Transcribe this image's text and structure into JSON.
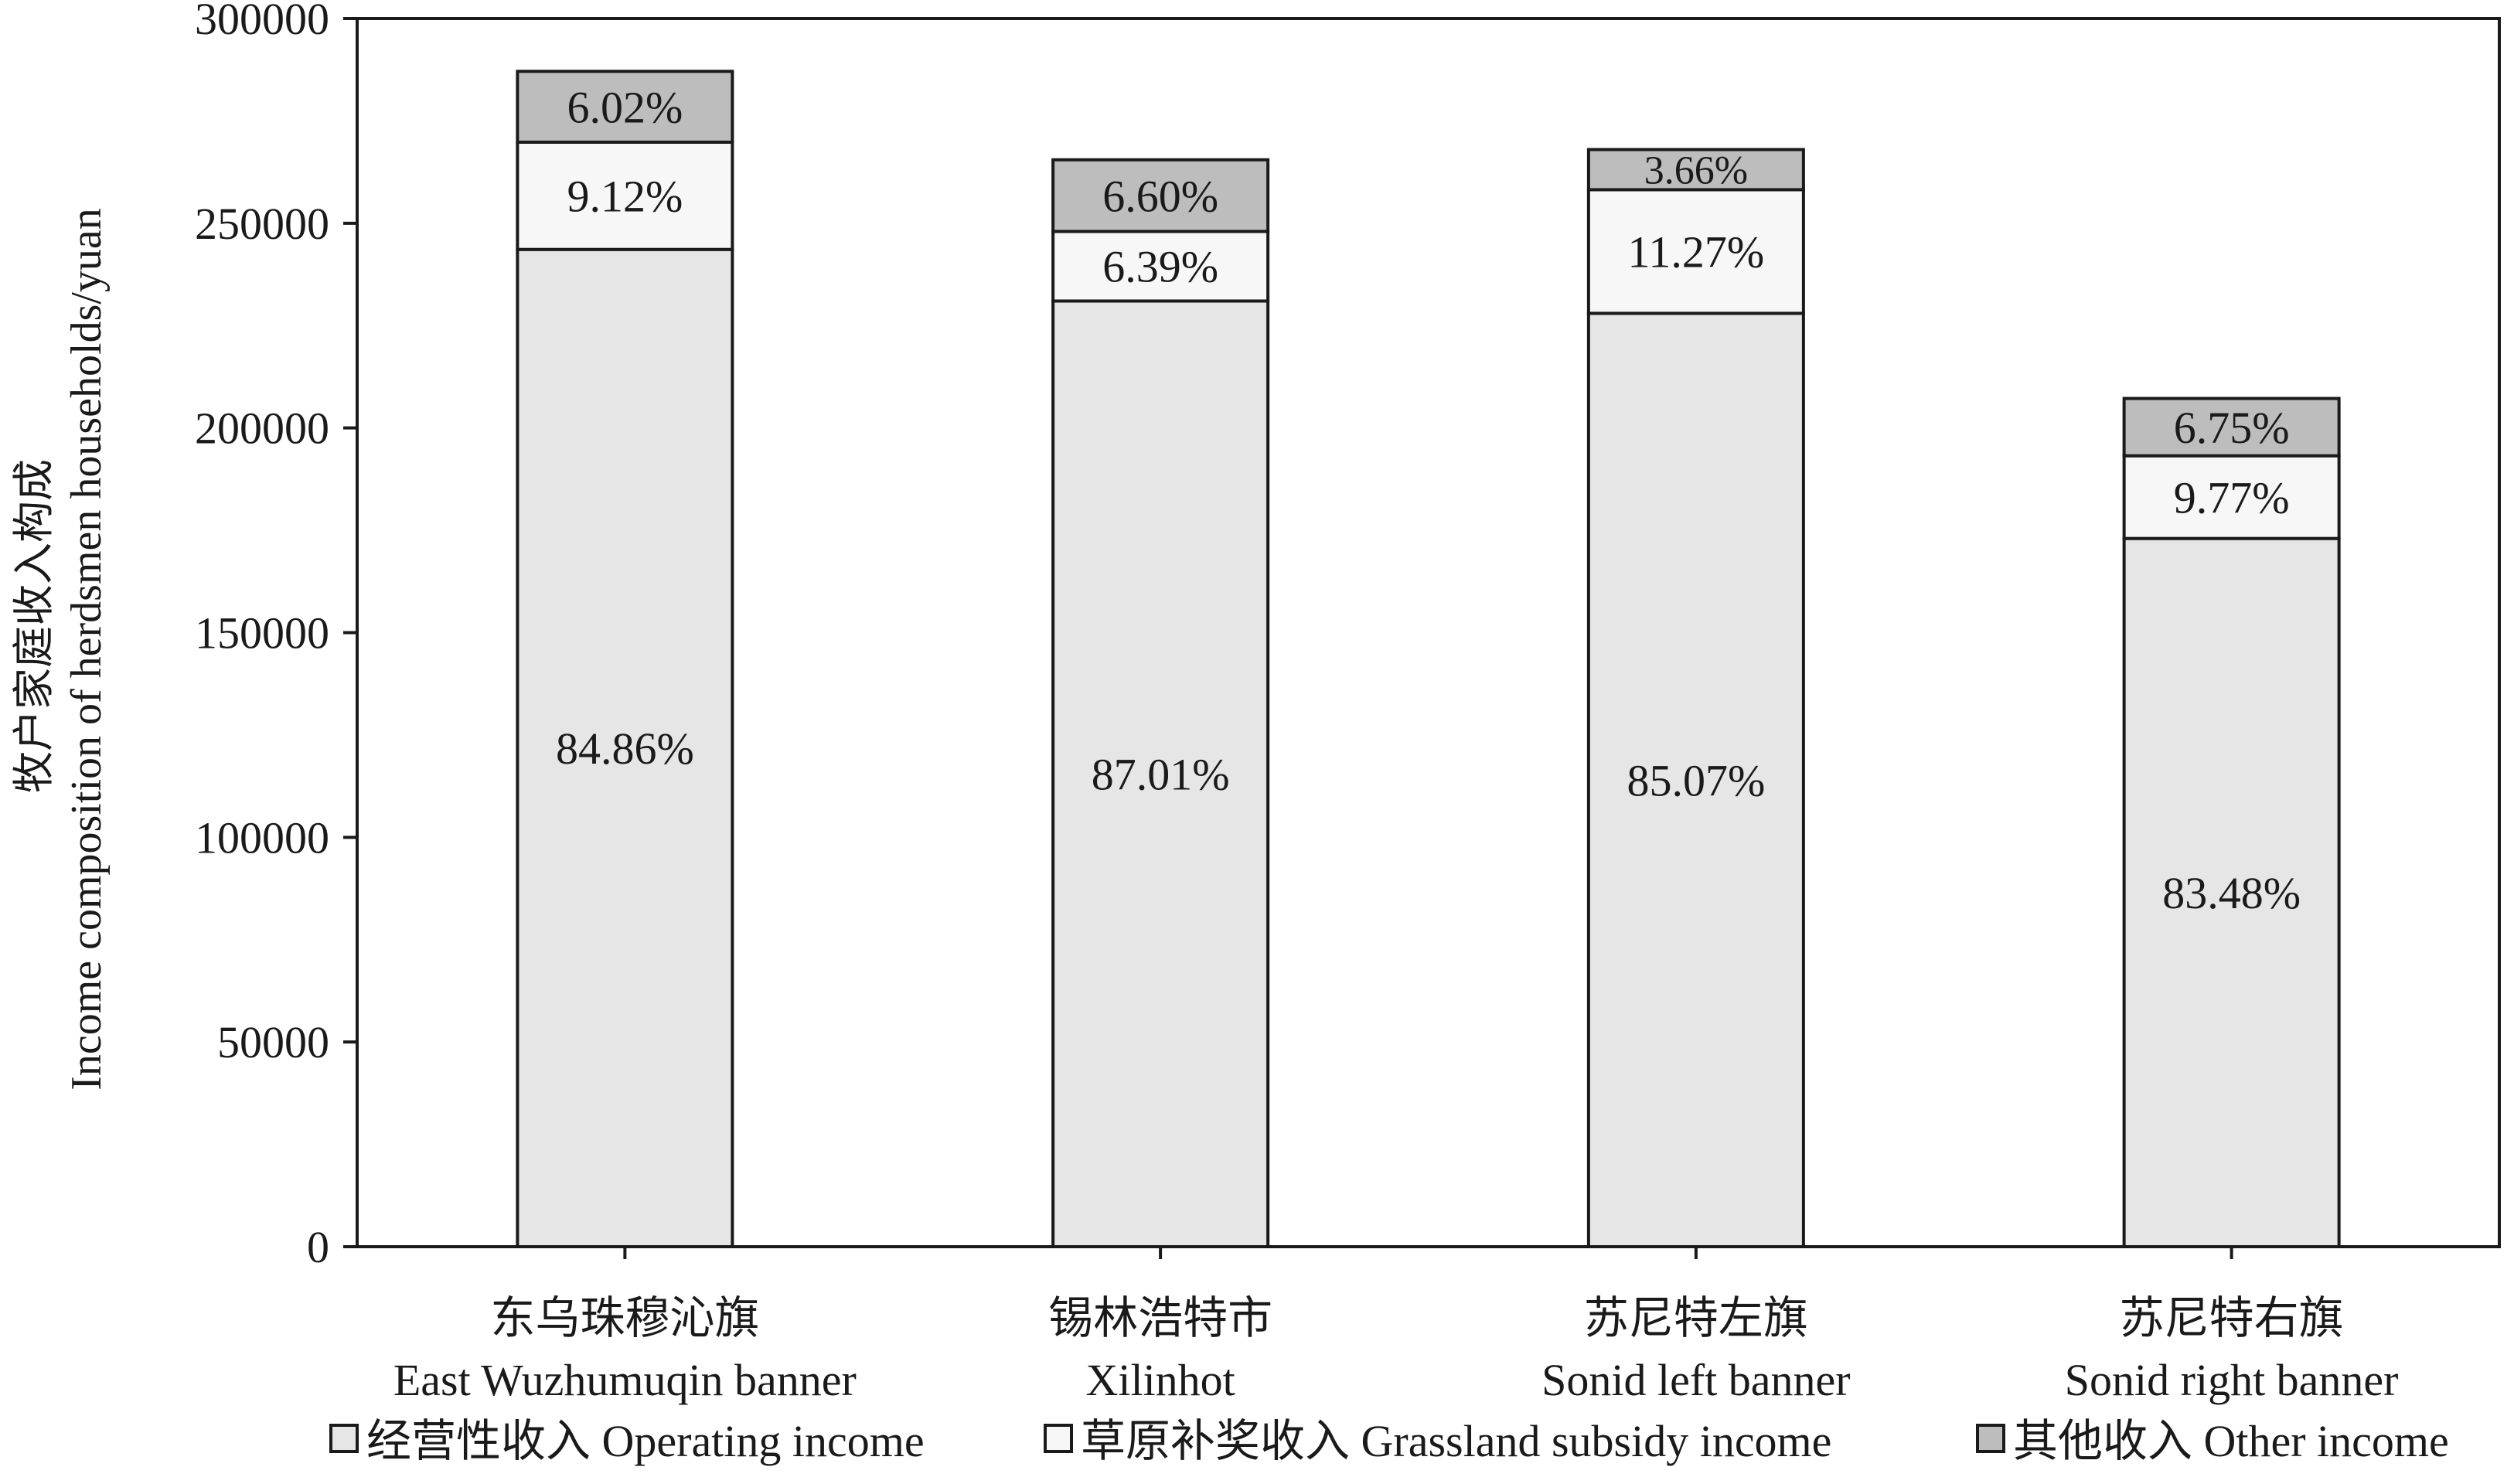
{
  "chart_data": {
    "type": "bar",
    "stacked": true,
    "ylabel_zh": "牧户家庭收入构成",
    "ylabel_en": "Income composition of herdsmen households/yuan",
    "ylim": [
      0,
      300000
    ],
    "yticks": [
      "0",
      "50000",
      "100000",
      "150000",
      "200000",
      "250000",
      "300000"
    ],
    "categories": [
      {
        "zh": "东乌珠穆沁旗",
        "en": "East Wuzhumuqin banner"
      },
      {
        "zh": "锡林浩特市",
        "en": "Xilinhot"
      },
      {
        "zh": "苏尼特左旗",
        "en": "Sonid left banner"
      },
      {
        "zh": "苏尼特右旗",
        "en": "Sonid right banner"
      }
    ],
    "series": [
      {
        "name": "经营性收入 Operating income",
        "color": "#e6e6e6",
        "values": [
          243600,
          231000,
          228000,
          173000
        ],
        "labels": [
          "84.86%",
          "87.01%",
          "85.07%",
          "83.48%"
        ]
      },
      {
        "name": "草原补奖收入 Grassland subsidy income",
        "color": "#f7f7f7",
        "values": [
          26200,
          17000,
          30200,
          20200
        ],
        "labels": [
          "9.12%",
          "6.39%",
          "11.27%",
          "9.77%"
        ]
      },
      {
        "name": "其他收入 Other income",
        "color": "#bdbdbd",
        "values": [
          17300,
          17500,
          9800,
          14000
        ],
        "labels": [
          "6.02%",
          "6.60%",
          "3.66%",
          "6.75%"
        ]
      }
    ],
    "legend_position": "bottom",
    "grid": false
  }
}
